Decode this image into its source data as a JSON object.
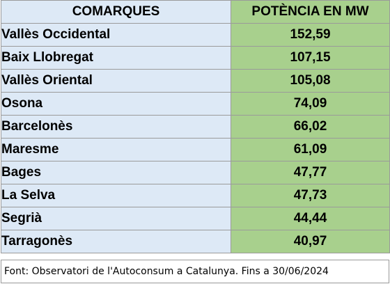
{
  "header": {
    "col1": "COMARQUES",
    "col2": "POTÈNCIA EN MW"
  },
  "rows": [
    {
      "comarca": "Vallès Occidental",
      "potencia": "152,59"
    },
    {
      "comarca": "Baix Llobregat",
      "potencia": "107,15"
    },
    {
      "comarca": "Vallès Oriental",
      "potencia": "105,08"
    },
    {
      "comarca": "Osona",
      "potencia": "74,09"
    },
    {
      "comarca": "Barcelonès",
      "potencia": "66,02"
    },
    {
      "comarca": "Maresme",
      "potencia": "61,09"
    },
    {
      "comarca": "Bages",
      "potencia": "47,77"
    },
    {
      "comarca": "La Selva",
      "potencia": "47,73"
    },
    {
      "comarca": "Segrià",
      "potencia": "44,44"
    },
    {
      "comarca": "Tarragonès",
      "potencia": "40,97"
    }
  ],
  "footnote": "Font: Observatori de l'Autoconsum a Catalunya. Fins a 30/06/2024",
  "colors": {
    "name_column_bg": "#dde9f6",
    "value_column_bg": "#a8d08d",
    "border": "#9a9a9a"
  }
}
